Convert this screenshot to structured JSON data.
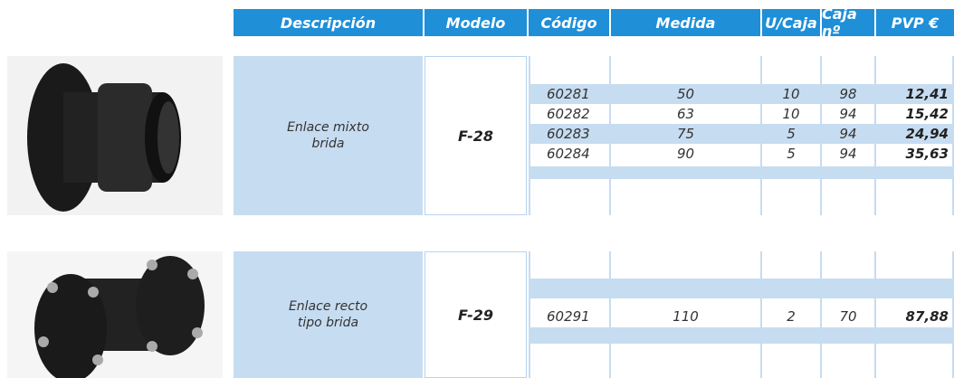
{
  "header": {
    "columns": [
      "Descripción",
      "Modelo",
      "Código",
      "Medida",
      "U/Caja",
      "Caja nº",
      "PVP €"
    ]
  },
  "products": [
    {
      "description": "Enlace mixto brida",
      "model": "F-28",
      "rows": [
        [
          "60281",
          "50",
          "10",
          "98",
          "12,41"
        ],
        [
          "60282",
          "63",
          "10",
          "94",
          "15,42"
        ],
        [
          "60283",
          "75",
          "5",
          "94",
          "24,94"
        ],
        [
          "60284",
          "90",
          "5",
          "94",
          "35,63"
        ]
      ]
    },
    {
      "description": "Enlace recto tipo brida",
      "model": "F-29",
      "rows": [
        [
          "60291",
          "110",
          "2",
          "70",
          "87,88"
        ]
      ]
    }
  ]
}
